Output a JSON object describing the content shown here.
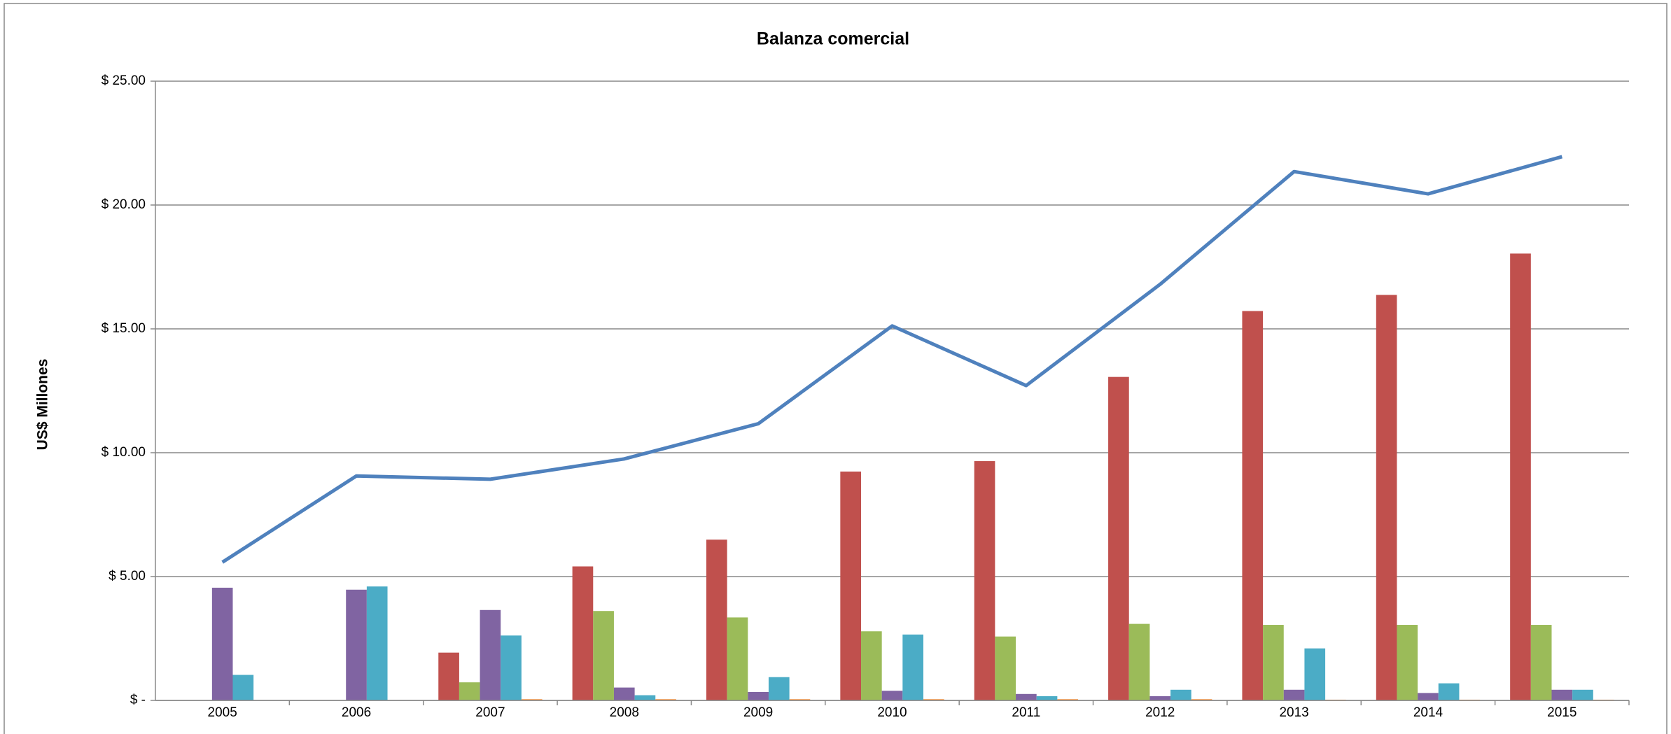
{
  "chart_data": {
    "type": "bar-line",
    "title": "Balanza comercial",
    "y_label": "US$ Millones",
    "categories": [
      "2005",
      "2006",
      "2007",
      "2008",
      "2009",
      "2010",
      "2011",
      "2012",
      "2013",
      "2014",
      "2015"
    ],
    "series": [
      {
        "type": "bar",
        "color": "#c0504d",
        "values": [
          0,
          0,
          1.93,
          5.41,
          6.49,
          9.24,
          9.66,
          13.06,
          15.72,
          16.37,
          18.04
        ]
      },
      {
        "type": "bar",
        "color": "#9bbb59",
        "values": [
          0,
          0,
          0.73,
          3.61,
          3.35,
          2.79,
          2.58,
          3.09,
          3.05,
          3.05,
          3.05
        ]
      },
      {
        "type": "bar",
        "color": "#8064a2",
        "values": [
          4.55,
          4.47,
          3.65,
          0.52,
          0.34,
          0.39,
          0.26,
          0.17,
          0.43,
          0.3,
          0.43
        ]
      },
      {
        "type": "bar",
        "color": "#4bacc6",
        "values": [
          1.03,
          4.6,
          2.62,
          0.21,
          0.94,
          2.66,
          0.17,
          0.43,
          2.1,
          0.69,
          0.43
        ]
      },
      {
        "type": "bar",
        "color": "#f79646",
        "values": [
          0,
          0,
          0.05,
          0.05,
          0.05,
          0.05,
          0.05,
          0.05,
          0.03,
          0.03,
          0.03
        ]
      },
      {
        "type": "line",
        "color": "#4f81bd",
        "values": [
          5.58,
          9.06,
          8.93,
          9.75,
          11.17,
          15.12,
          12.71,
          16.8,
          21.35,
          20.45,
          21.95
        ]
      }
    ],
    "ylim": [
      0,
      25
    ],
    "yticks": [
      {
        "value": 0,
        "label": "$ -"
      },
      {
        "value": 5,
        "label": "$ 5.00"
      },
      {
        "value": 10,
        "label": "$ 10.00"
      },
      {
        "value": 15,
        "label": "$ 15.00"
      },
      {
        "value": 20,
        "label": "$ 20.00"
      },
      {
        "value": 25,
        "label": "$ 25.00"
      }
    ],
    "grid": true
  }
}
